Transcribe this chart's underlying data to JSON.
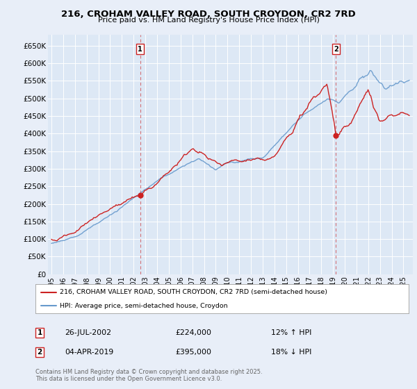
{
  "title": "216, CROHAM VALLEY ROAD, SOUTH CROYDON, CR2 7RD",
  "subtitle": "Price paid vs. HM Land Registry's House Price Index (HPI)",
  "ylabel_ticks": [
    "£0",
    "£50K",
    "£100K",
    "£150K",
    "£200K",
    "£250K",
    "£300K",
    "£350K",
    "£400K",
    "£450K",
    "£500K",
    "£550K",
    "£600K",
    "£650K"
  ],
  "ytick_values": [
    0,
    50000,
    100000,
    150000,
    200000,
    250000,
    300000,
    350000,
    400000,
    450000,
    500000,
    550000,
    600000,
    650000
  ],
  "ylim": [
    0,
    680000
  ],
  "xlim_start": 1994.7,
  "xlim_end": 2025.8,
  "hpi_color": "#6699cc",
  "price_color": "#cc2222",
  "marker1_date": 2002.56,
  "marker1_price": 224000,
  "marker1_hpi_price": 200000,
  "marker2_date": 2019.25,
  "marker2_price": 395000,
  "marker2_hpi_price": 480000,
  "legend_line1": "216, CROHAM VALLEY ROAD, SOUTH CROYDON, CR2 7RD (semi-detached house)",
  "legend_line2": "HPI: Average price, semi-detached house, Croydon",
  "annot1_date": "26-JUL-2002",
  "annot1_price": "£224,000",
  "annot1_pct": "12% ↑ HPI",
  "annot2_date": "04-APR-2019",
  "annot2_price": "£395,000",
  "annot2_pct": "18% ↓ HPI",
  "footer": "Contains HM Land Registry data © Crown copyright and database right 2025.\nThis data is licensed under the Open Government Licence v3.0.",
  "bg_color": "#e8eef8",
  "plot_bg": "#dde8f5"
}
